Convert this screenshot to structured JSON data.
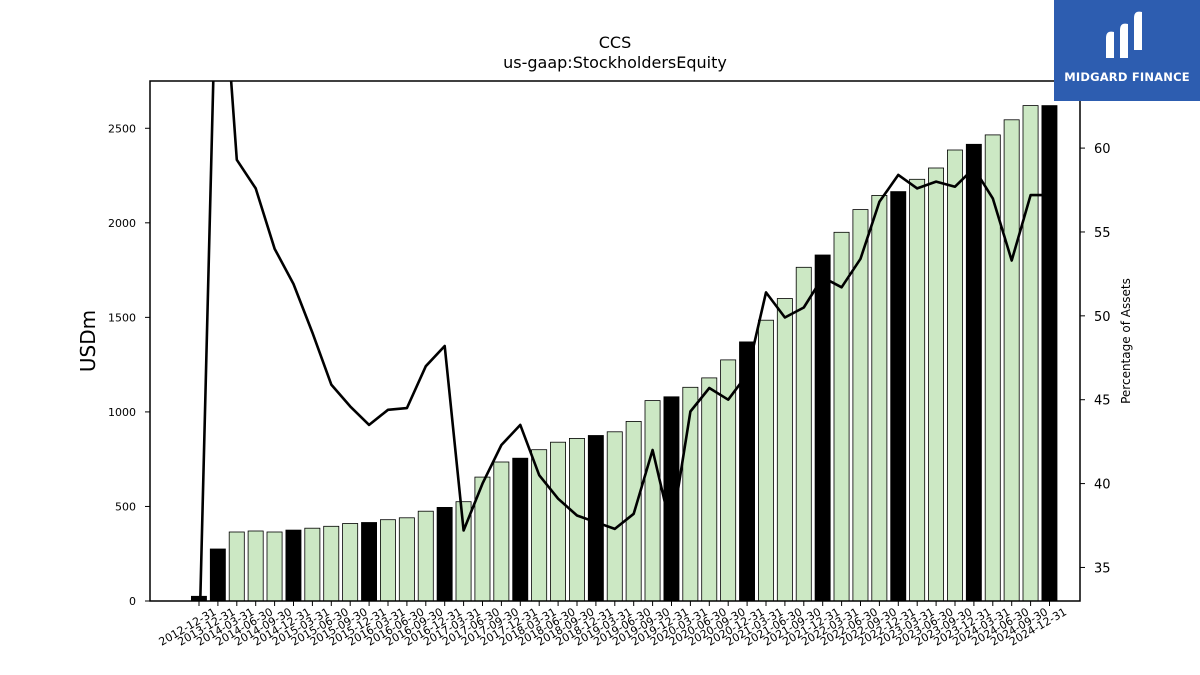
{
  "logo": {
    "text": "MIDGARD FINANCE"
  },
  "chart_data": {
    "type": "bar+line",
    "title": "CCS",
    "subtitle": "us-gaap:StockholdersEquity",
    "ylabel": "USDm",
    "y2label": "Percentage of Assets",
    "ylim": [
      0,
      2750
    ],
    "y2lim": [
      33,
      64
    ],
    "yticks": [
      0,
      500,
      1000,
      1500,
      2000,
      2500
    ],
    "y2ticks": [
      35,
      40,
      45,
      50,
      55,
      60
    ],
    "grid": false,
    "colors": {
      "q4_bar": "#000000",
      "other_bar": "#cce8c4",
      "line": "#000000"
    },
    "categories": [
      "2012-12-31",
      "2013-12-31",
      "2014-03-31",
      "2014-06-30",
      "2014-09-30",
      "2014-12-31",
      "2015-03-31",
      "2015-06-30",
      "2015-09-30",
      "2015-12-31",
      "2016-03-31",
      "2016-06-30",
      "2016-09-30",
      "2016-12-31",
      "2017-03-31",
      "2017-06-30",
      "2017-09-30",
      "2017-12-31",
      "2018-03-31",
      "2018-06-30",
      "2018-09-30",
      "2018-12-31",
      "2019-03-31",
      "2019-06-30",
      "2019-09-30",
      "2019-12-31",
      "2020-03-31",
      "2020-06-30",
      "2020-09-30",
      "2020-12-31",
      "2021-03-31",
      "2021-06-30",
      "2021-09-30",
      "2021-12-31",
      "2022-03-31",
      "2022-06-30",
      "2022-09-30",
      "2022-12-31",
      "2023-03-31",
      "2023-06-30",
      "2023-09-30",
      "2023-12-31",
      "2024-03-31",
      "2024-06-30",
      "2024-09-30",
      "2024-12-31"
    ],
    "series": [
      {
        "name": "StockholdersEquity",
        "kind": "bar",
        "values": [
          25,
          275,
          365,
          370,
          365,
          375,
          385,
          395,
          410,
          415,
          430,
          440,
          475,
          495,
          525,
          655,
          735,
          755,
          800,
          840,
          860,
          875,
          895,
          950,
          1060,
          1080,
          1130,
          1180,
          1275,
          1370,
          1485,
          1600,
          1765,
          1830,
          1950,
          2070,
          2145,
          2165,
          2230,
          2290,
          2385,
          2415,
          2465,
          2545,
          2620,
          2620
        ]
      },
      {
        "name": "Percentage of Assets",
        "kind": "line",
        "values": [
          30,
          75,
          59.3,
          57.6,
          54.0,
          51.9,
          49.0,
          45.9,
          44.6,
          43.5,
          44.4,
          44.5,
          47.0,
          48.2,
          37.2,
          40.0,
          42.3,
          43.5,
          40.5,
          39.1,
          38.1,
          37.7,
          37.3,
          38.2,
          42.0,
          37.2,
          44.3,
          45.7,
          45.0,
          46.5,
          51.4,
          49.9,
          50.5,
          52.3,
          51.7,
          53.4,
          56.8,
          58.4,
          57.6,
          58.0,
          57.7,
          58.8,
          57.0,
          53.3,
          57.2,
          57.2
        ]
      }
    ]
  }
}
